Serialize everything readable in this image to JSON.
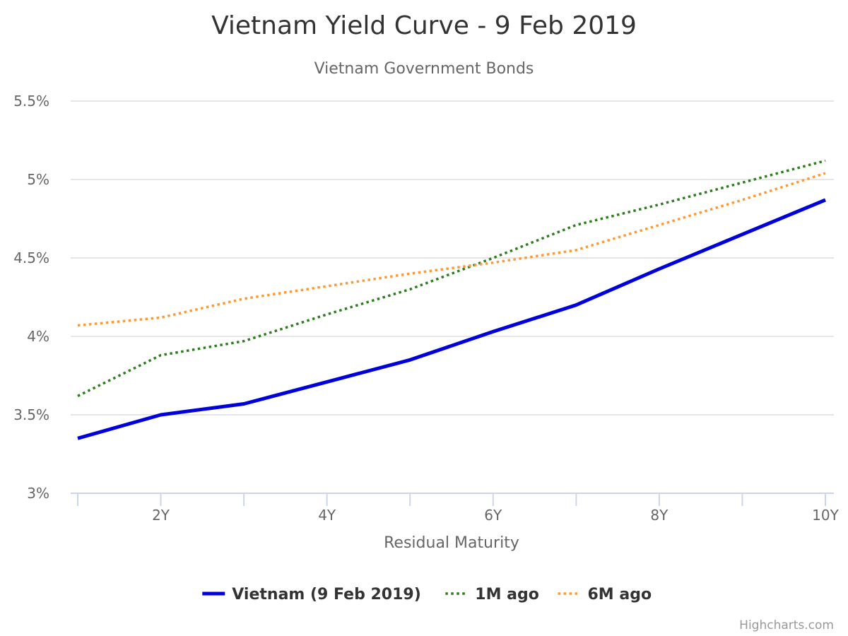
{
  "chart_data": {
    "type": "line",
    "title": "Vietnam Yield Curve - 9 Feb 2019",
    "subtitle": "Vietnam Government Bonds",
    "xlabel": "Residual Maturity",
    "ylabel": "",
    "x": [
      1,
      2,
      3,
      4,
      5,
      6,
      7,
      8,
      9,
      10
    ],
    "x_tick_labels": [
      "2Y",
      "4Y",
      "6Y",
      "8Y",
      "10Y"
    ],
    "x_tick_values": [
      2,
      4,
      6,
      8,
      10
    ],
    "xlim": [
      1,
      10
    ],
    "ylim": [
      3,
      5.5
    ],
    "y_ticks": [
      3,
      3.5,
      4,
      4.5,
      5,
      5.5
    ],
    "y_tick_labels": [
      "3%",
      "3.5%",
      "4%",
      "4.5%",
      "5%",
      "5.5%"
    ],
    "grid": true,
    "legend_position": "bottom-center",
    "series": [
      {
        "name": "Vietnam (9 Feb 2019)",
        "color": "#0000dd",
        "style": "solid",
        "values": [
          3.35,
          3.5,
          3.57,
          3.71,
          3.85,
          4.03,
          4.2,
          4.43,
          4.65,
          4.87
        ]
      },
      {
        "name": "1M ago",
        "color": "#2e7d1e",
        "style": "dotted",
        "values": [
          3.62,
          3.88,
          3.97,
          4.14,
          4.3,
          4.5,
          4.71,
          4.84,
          4.98,
          5.12
        ]
      },
      {
        "name": "6M ago",
        "color": "#ff9933",
        "style": "dotted",
        "values": [
          4.07,
          4.12,
          4.24,
          4.32,
          4.4,
          4.47,
          4.55,
          4.71,
          4.87,
          5.04
        ]
      }
    ],
    "credits": "Highcharts.com"
  }
}
